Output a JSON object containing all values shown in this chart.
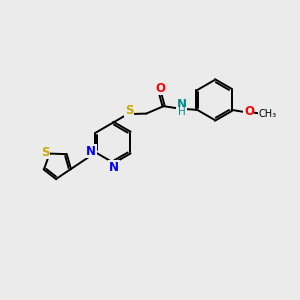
{
  "bg_color": "#ebebeb",
  "atom_colors": {
    "S": "#ccaa00",
    "N": "#0000ff",
    "O": "#ff0000",
    "NH_N": "#008b8b",
    "NH_H": "#008b8b"
  },
  "figsize": [
    3.0,
    3.0
  ],
  "dpi": 100,
  "xlim": [
    0,
    12
  ],
  "ylim": [
    0,
    10
  ]
}
